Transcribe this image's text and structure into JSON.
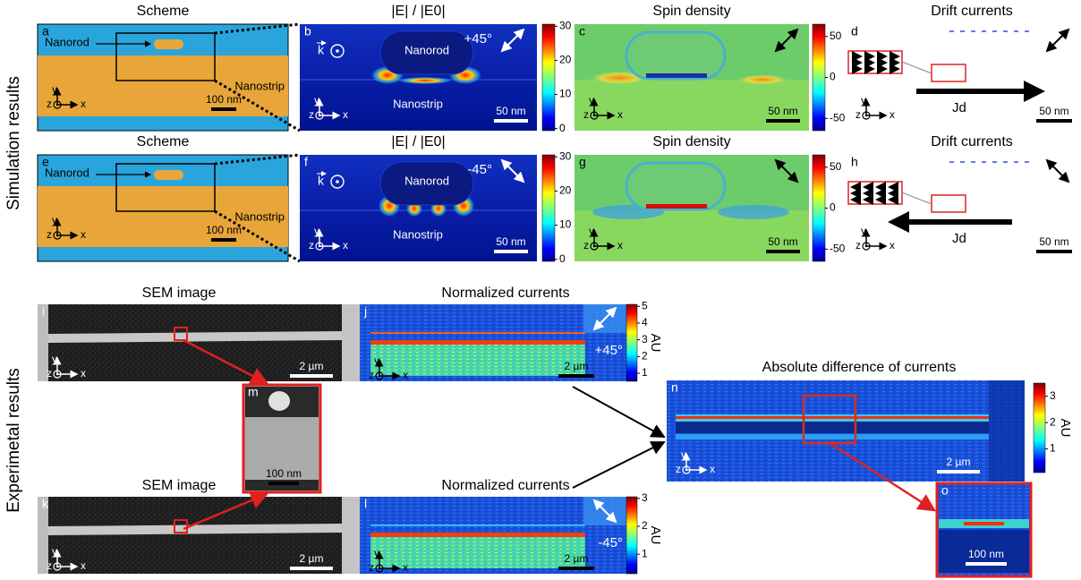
{
  "simulation": {
    "row_label": "Simulation results",
    "rows": [
      {
        "scheme": {
          "letter": "a",
          "title": "Scheme",
          "nanorod": "Nanorod",
          "nanostrip": "Nanostrip",
          "scale_bar": "100 nm"
        },
        "field": {
          "letter": "b",
          "title": "|E| / |E0|",
          "nanorod": "Nanorod",
          "nanostrip": "Nanostrip",
          "angle": "+45°",
          "wavevector": "k",
          "scale_bar": "50 nm",
          "colorbar": [
            30,
            20,
            10,
            0
          ]
        },
        "spin": {
          "letter": "c",
          "title": "Spin density",
          "scale_bar": "50 nm",
          "colorbar": [
            50,
            0,
            -50
          ]
        },
        "drift": {
          "letter": "d",
          "title": "Drift currents",
          "current": "Jd",
          "scale_bar": "50 nm"
        }
      },
      {
        "scheme": {
          "letter": "e",
          "title": "Scheme",
          "nanorod": "Nanorod",
          "nanostrip": "Nanostrip",
          "scale_bar": "100 nm"
        },
        "field": {
          "letter": "f",
          "title": "|E| / |E0|",
          "nanorod": "Nanorod",
          "nanostrip": "Nanostrip",
          "angle": "-45°",
          "wavevector": "k",
          "scale_bar": "50 nm",
          "colorbar": [
            30,
            20,
            10,
            0
          ]
        },
        "spin": {
          "letter": "g",
          "title": "Spin density",
          "scale_bar": "50 nm",
          "colorbar": [
            50,
            0,
            -50
          ]
        },
        "drift": {
          "letter": "h",
          "title": "Drift currents",
          "current": "Jd",
          "scale_bar": "50 nm"
        }
      }
    ]
  },
  "experimental": {
    "row_label": "Experimetal results",
    "rows": [
      {
        "sem": {
          "letter": "i",
          "title": "SEM image",
          "scale_bar": "2 µm"
        },
        "currents": {
          "letter": "j",
          "title": "Normalized currents",
          "angle": "+45°",
          "scale_bar": "2 µm",
          "colorbar": [
            5,
            4,
            3,
            2,
            1
          ],
          "unit": "AU"
        }
      },
      {
        "sem": {
          "letter": "k",
          "title": "SEM image",
          "scale_bar": "2 µm"
        },
        "currents": {
          "letter": "l",
          "title": "Normalized currents",
          "angle": "-45°",
          "scale_bar": "2 µm",
          "colorbar": [
            3,
            2,
            1
          ],
          "unit": "AU"
        }
      }
    ],
    "inset_sem": {
      "letter": "m",
      "scale_bar": "100 nm"
    },
    "difference": {
      "letter": "n",
      "title": "Absolute difference of currents",
      "scale_bar": "2 µm",
      "colorbar": [
        3,
        2,
        1
      ],
      "unit": "AU"
    },
    "inset_difference": {
      "letter": "o",
      "scale_bar": "100 nm"
    }
  },
  "axes": {
    "y": "y",
    "z": "z",
    "x": "x"
  }
}
